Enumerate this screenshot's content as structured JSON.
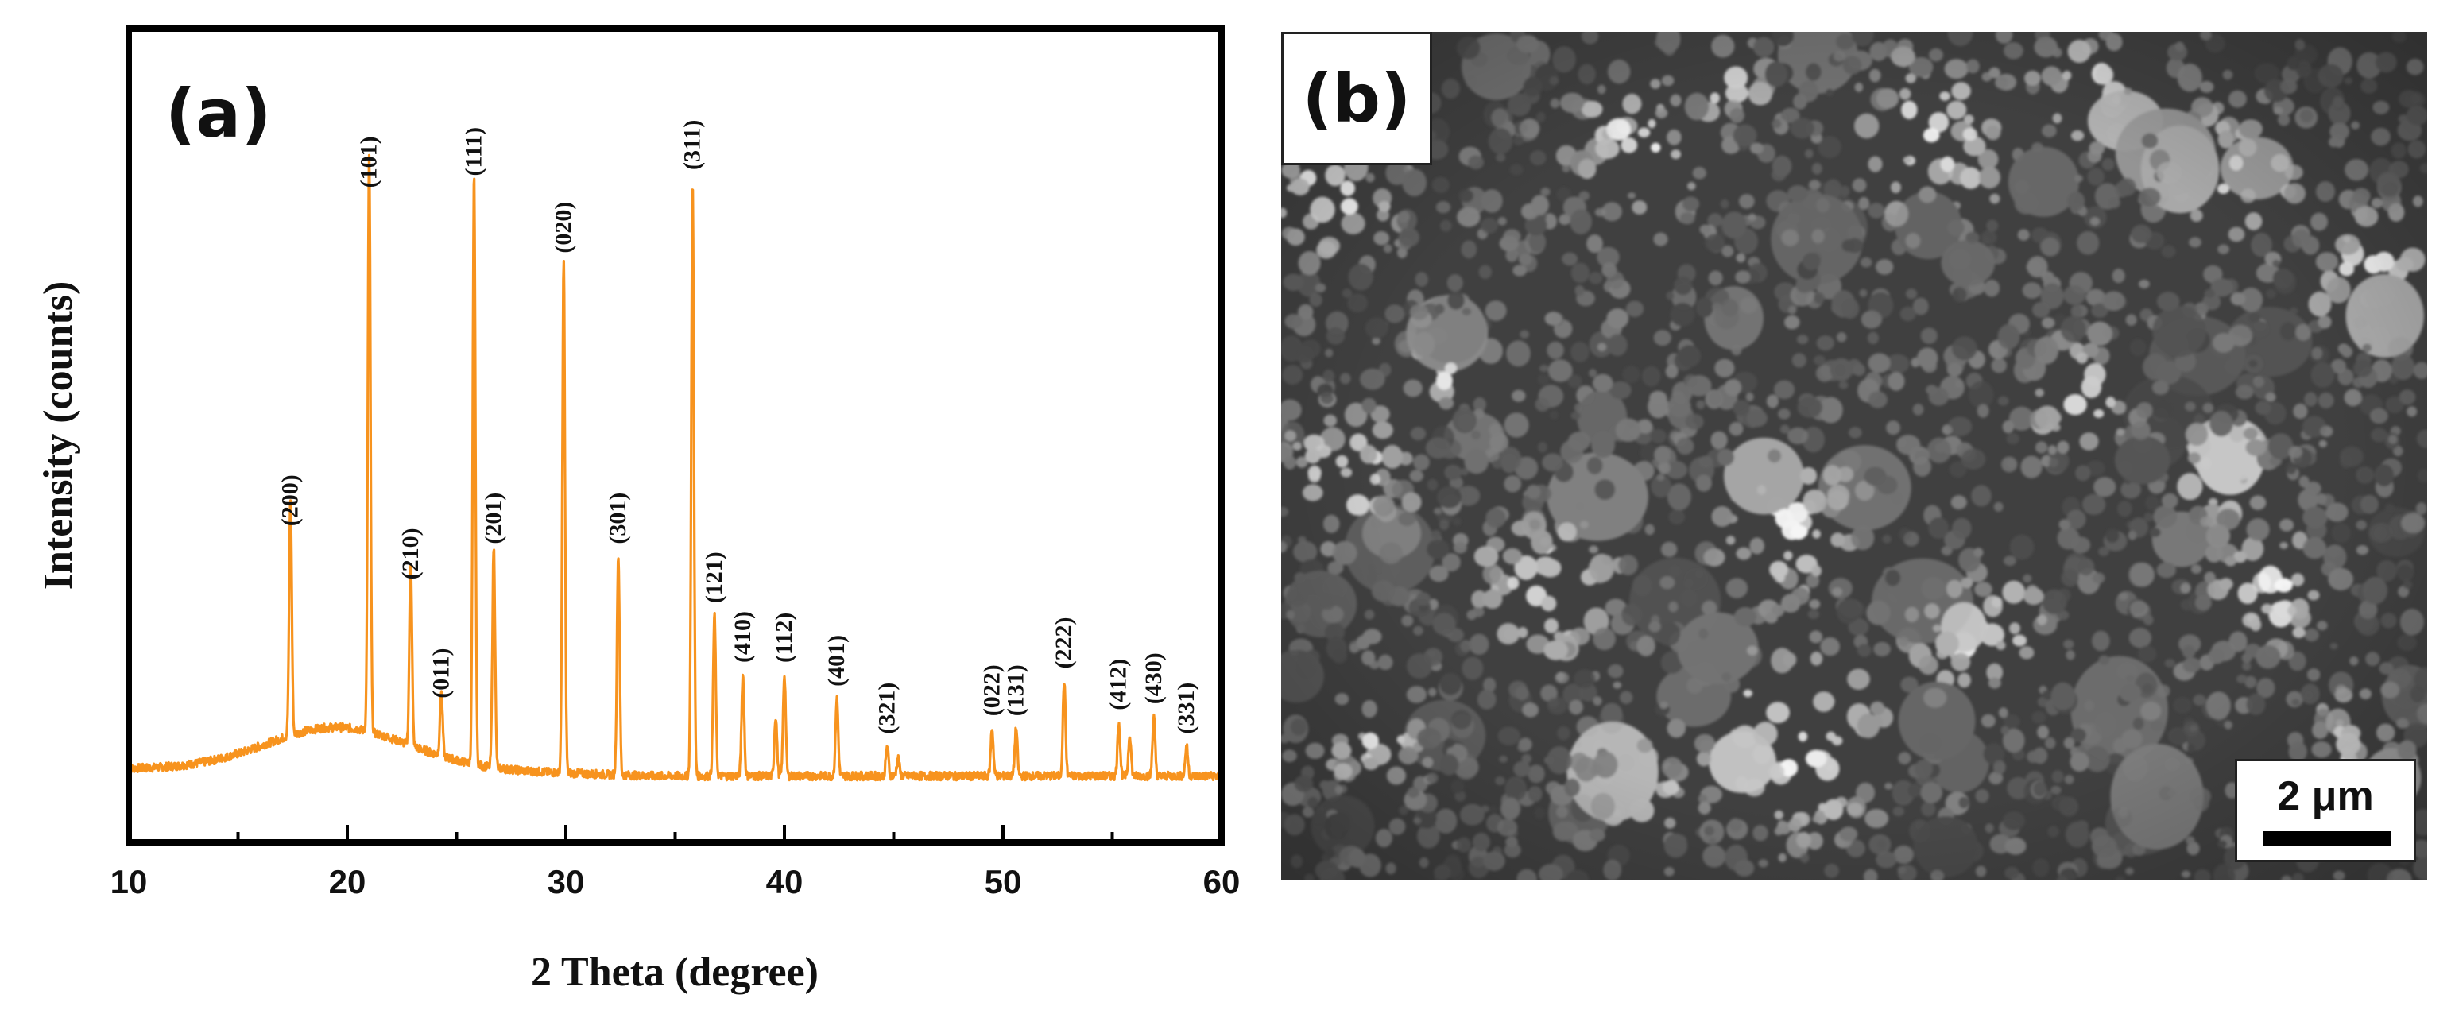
{
  "panel_a": {
    "label": "(a)",
    "chart_data": {
      "type": "line",
      "xlabel": "2 Theta (degree)",
      "ylabel": "Intensity (counts)",
      "xlim": [
        10,
        60
      ],
      "xticks": [
        10,
        20,
        30,
        40,
        50,
        60
      ],
      "y_tick_labels": false,
      "line_color": "#F7931E",
      "baseline_hump": {
        "center": 19.5,
        "width": 4.5,
        "height": 0.07,
        "base": 0.01
      },
      "peaks": [
        {
          "label": "(200)",
          "x": 17.4,
          "y": 0.4
        },
        {
          "label": "(101)",
          "x": 21.0,
          "y": 0.97
        },
        {
          "label": "(210)",
          "x": 22.9,
          "y": 0.31
        },
        {
          "label": "(011)",
          "x": 24.3,
          "y": 0.11
        },
        {
          "label": "(111)",
          "x": 25.8,
          "y": 0.99
        },
        {
          "label": "(201)",
          "x": 26.7,
          "y": 0.37
        },
        {
          "label": "(020)",
          "x": 29.9,
          "y": 0.86
        },
        {
          "label": "(301)",
          "x": 32.4,
          "y": 0.37
        },
        {
          "label": "(311)",
          "x": 35.8,
          "y": 1.0
        },
        {
          "label": "(121)",
          "x": 36.8,
          "y": 0.27
        },
        {
          "label": "(410)",
          "x": 38.1,
          "y": 0.17
        },
        {
          "label": "(112)",
          "x": 40.0,
          "y": 0.17
        },
        {
          "label": "(401)",
          "x": 42.4,
          "y": 0.13
        },
        {
          "label": "(321)",
          "x": 44.7,
          "y": 0.05
        },
        {
          "label": "(022)",
          "x": 49.5,
          "y": 0.08
        },
        {
          "label": "(131)",
          "x": 50.6,
          "y": 0.08
        },
        {
          "label": "(222)",
          "x": 52.8,
          "y": 0.16
        },
        {
          "label": "(412)",
          "x": 55.3,
          "y": 0.09
        },
        {
          "label": "(430)",
          "x": 56.9,
          "y": 0.1
        },
        {
          "label": "(331)",
          "x": 58.4,
          "y": 0.05
        }
      ],
      "unlabeled_peaks": [
        {
          "x": 39.6,
          "y": 0.1
        },
        {
          "x": 45.2,
          "y": 0.03
        },
        {
          "x": 55.8,
          "y": 0.07
        }
      ]
    }
  },
  "panel_b": {
    "label": "(b)",
    "image": "SEM micrograph of agglomerated particles",
    "scale_bar": "2 μm"
  }
}
